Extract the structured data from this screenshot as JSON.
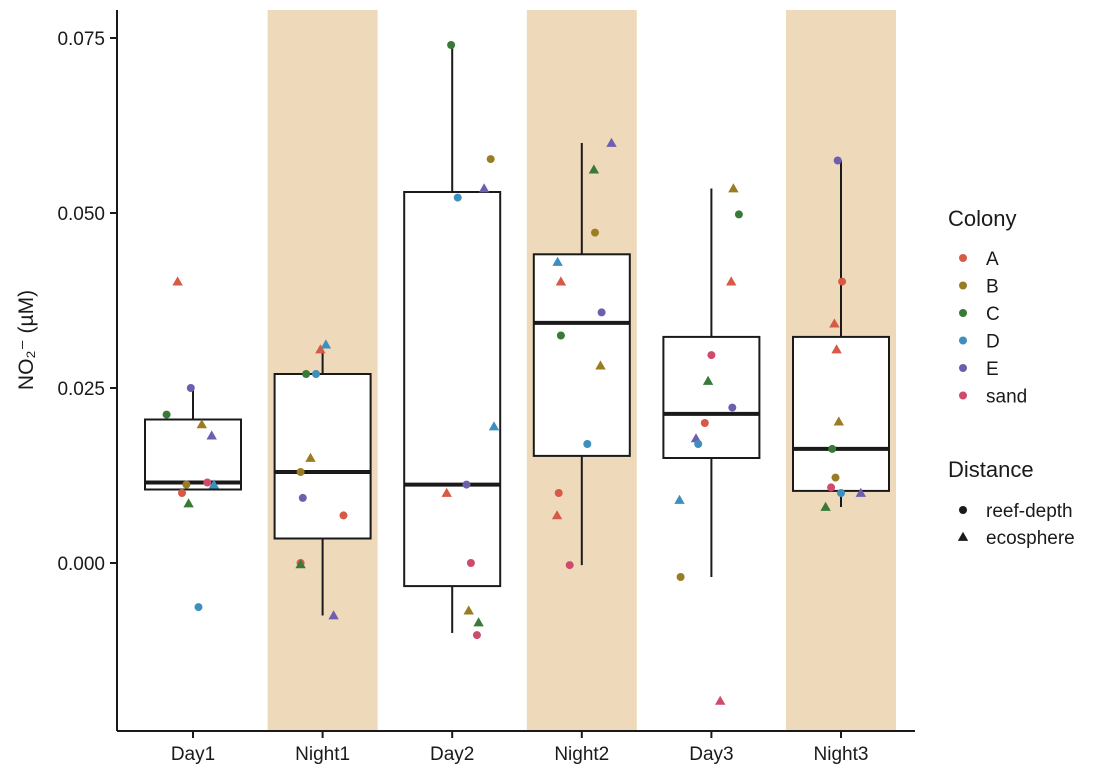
{
  "chart_data": {
    "type": "box",
    "ylabel": "NO₂⁻ (µM)",
    "ylim": [
      -0.024,
      0.079
    ],
    "yticks": [
      0.0,
      0.025,
      0.05,
      0.075
    ],
    "ytick_labels": [
      "0.000",
      "0.025",
      "0.050",
      "0.075"
    ],
    "categories": [
      "Day1",
      "Night1",
      "Day2",
      "Night2",
      "Day3",
      "Night3"
    ],
    "shaded_categories": [
      "Night1",
      "Night2",
      "Night3"
    ],
    "shade_color": "#efd9bb",
    "grid": false,
    "legend_position": "right",
    "boxes": [
      {
        "category": "Day1",
        "whisker_low": 0.0105,
        "q1": 0.0105,
        "median": 0.0115,
        "q3": 0.0205,
        "whisker_high": 0.025
      },
      {
        "category": "Night1",
        "whisker_low": -0.0075,
        "q1": 0.0035,
        "median": 0.013,
        "q3": 0.027,
        "whisker_high": 0.0305
      },
      {
        "category": "Day2",
        "whisker_low": -0.01,
        "q1": -0.0033,
        "median": 0.0112,
        "q3": 0.053,
        "whisker_high": 0.074
      },
      {
        "category": "Night2",
        "whisker_low": -0.0003,
        "q1": 0.0153,
        "median": 0.0343,
        "q3": 0.0441,
        "whisker_high": 0.06
      },
      {
        "category": "Day3",
        "whisker_low": -0.002,
        "q1": 0.015,
        "median": 0.0213,
        "q3": 0.0323,
        "whisker_high": 0.0535
      },
      {
        "category": "Night3",
        "whisker_low": 0.008,
        "q1": 0.0103,
        "median": 0.0163,
        "q3": 0.0323,
        "whisker_high": 0.0575
      }
    ],
    "points": [
      {
        "category": "Day1",
        "jitter": -0.48,
        "y": 0.0212,
        "colony": "C",
        "distance": "reef-depth"
      },
      {
        "category": "Day1",
        "jitter": -0.28,
        "y": 0.0402,
        "colony": "A",
        "distance": "ecosphere"
      },
      {
        "category": "Day1",
        "jitter": -0.2,
        "y": 0.01,
        "colony": "A",
        "distance": "reef-depth"
      },
      {
        "category": "Day1",
        "jitter": -0.12,
        "y": 0.0112,
        "colony": "B",
        "distance": "reef-depth"
      },
      {
        "category": "Day1",
        "jitter": -0.08,
        "y": 0.0085,
        "colony": "C",
        "distance": "ecosphere"
      },
      {
        "category": "Day1",
        "jitter": -0.04,
        "y": 0.025,
        "colony": "E",
        "distance": "reef-depth"
      },
      {
        "category": "Day1",
        "jitter": 0.1,
        "y": -0.0063,
        "colony": "D",
        "distance": "reef-depth"
      },
      {
        "category": "Day1",
        "jitter": 0.16,
        "y": 0.0198,
        "colony": "B",
        "distance": "ecosphere"
      },
      {
        "category": "Day1",
        "jitter": 0.26,
        "y": 0.0115,
        "colony": "sand",
        "distance": "reef-depth"
      },
      {
        "category": "Day1",
        "jitter": 0.34,
        "y": 0.0182,
        "colony": "E",
        "distance": "ecosphere"
      },
      {
        "category": "Day1",
        "jitter": 0.38,
        "y": 0.0112,
        "colony": "D",
        "distance": "ecosphere"
      },
      {
        "category": "Night1",
        "jitter": -0.4,
        "y": 0.0,
        "colony": "A",
        "distance": "reef-depth"
      },
      {
        "category": "Night1",
        "jitter": -0.4,
        "y": -0.0002,
        "colony": "C",
        "distance": "ecosphere"
      },
      {
        "category": "Night1",
        "jitter": -0.4,
        "y": 0.013,
        "colony": "B",
        "distance": "reef-depth"
      },
      {
        "category": "Night1",
        "jitter": -0.36,
        "y": 0.0093,
        "colony": "E",
        "distance": "reef-depth"
      },
      {
        "category": "Night1",
        "jitter": -0.3,
        "y": 0.027,
        "colony": "C",
        "distance": "reef-depth"
      },
      {
        "category": "Night1",
        "jitter": -0.22,
        "y": 0.015,
        "colony": "B",
        "distance": "ecosphere"
      },
      {
        "category": "Night1",
        "jitter": -0.12,
        "y": 0.027,
        "colony": "D",
        "distance": "reef-depth"
      },
      {
        "category": "Night1",
        "jitter": -0.04,
        "y": 0.0305,
        "colony": "A",
        "distance": "ecosphere"
      },
      {
        "category": "Night1",
        "jitter": 0.06,
        "y": 0.0312,
        "colony": "D",
        "distance": "ecosphere"
      },
      {
        "category": "Night1",
        "jitter": 0.2,
        "y": -0.0075,
        "colony": "E",
        "distance": "ecosphere"
      },
      {
        "category": "Night1",
        "jitter": 0.38,
        "y": 0.0068,
        "colony": "A",
        "distance": "reef-depth"
      },
      {
        "category": "Day2",
        "jitter": -0.02,
        "y": 0.074,
        "colony": "C",
        "distance": "reef-depth"
      },
      {
        "category": "Day2",
        "jitter": -0.1,
        "y": 0.01,
        "colony": "A",
        "distance": "ecosphere"
      },
      {
        "category": "Day2",
        "jitter": 0.1,
        "y": 0.0522,
        "colony": "D",
        "distance": "reef-depth"
      },
      {
        "category": "Day2",
        "jitter": 0.26,
        "y": 0.0112,
        "colony": "E",
        "distance": "reef-depth"
      },
      {
        "category": "Day2",
        "jitter": 0.3,
        "y": -0.0068,
        "colony": "B",
        "distance": "ecosphere"
      },
      {
        "category": "Day2",
        "jitter": 0.34,
        "y": 0.0,
        "colony": "sand",
        "distance": "reef-depth"
      },
      {
        "category": "Day2",
        "jitter": 0.45,
        "y": -0.0103,
        "colony": "sand",
        "distance": "reef-depth"
      },
      {
        "category": "Day2",
        "jitter": 0.48,
        "y": -0.0085,
        "colony": "C",
        "distance": "ecosphere"
      },
      {
        "category": "Day2",
        "jitter": 0.58,
        "y": 0.0535,
        "colony": "E",
        "distance": "ecosphere"
      },
      {
        "category": "Day2",
        "jitter": 0.7,
        "y": 0.0577,
        "colony": "B",
        "distance": "reef-depth"
      },
      {
        "category": "Day2",
        "jitter": 0.76,
        "y": 0.0195,
        "colony": "D",
        "distance": "ecosphere"
      },
      {
        "category": "Night2",
        "jitter": -0.45,
        "y": 0.0068,
        "colony": "A",
        "distance": "ecosphere"
      },
      {
        "category": "Night2",
        "jitter": -0.42,
        "y": 0.01,
        "colony": "A",
        "distance": "reef-depth"
      },
      {
        "category": "Night2",
        "jitter": -0.44,
        "y": 0.043,
        "colony": "D",
        "distance": "ecosphere"
      },
      {
        "category": "Night2",
        "jitter": -0.38,
        "y": 0.0402,
        "colony": "A",
        "distance": "ecosphere"
      },
      {
        "category": "Night2",
        "jitter": -0.38,
        "y": 0.0325,
        "colony": "C",
        "distance": "reef-depth"
      },
      {
        "category": "Night2",
        "jitter": -0.22,
        "y": -0.0003,
        "colony": "sand",
        "distance": "reef-depth"
      },
      {
        "category": "Night2",
        "jitter": 0.1,
        "y": 0.017,
        "colony": "D",
        "distance": "reef-depth"
      },
      {
        "category": "Night2",
        "jitter": 0.22,
        "y": 0.0562,
        "colony": "C",
        "distance": "ecosphere"
      },
      {
        "category": "Night2",
        "jitter": 0.24,
        "y": 0.0472,
        "colony": "B",
        "distance": "reef-depth"
      },
      {
        "category": "Night2",
        "jitter": 0.34,
        "y": 0.0282,
        "colony": "B",
        "distance": "ecosphere"
      },
      {
        "category": "Night2",
        "jitter": 0.36,
        "y": 0.0358,
        "colony": "E",
        "distance": "reef-depth"
      },
      {
        "category": "Night2",
        "jitter": 0.54,
        "y": 0.06,
        "colony": "E",
        "distance": "ecosphere"
      },
      {
        "category": "Day3",
        "jitter": -0.58,
        "y": 0.009,
        "colony": "D",
        "distance": "ecosphere"
      },
      {
        "category": "Day3",
        "jitter": -0.56,
        "y": -0.002,
        "colony": "B",
        "distance": "reef-depth"
      },
      {
        "category": "Day3",
        "jitter": -0.28,
        "y": 0.0178,
        "colony": "E",
        "distance": "ecosphere"
      },
      {
        "category": "Day3",
        "jitter": -0.24,
        "y": 0.017,
        "colony": "D",
        "distance": "reef-depth"
      },
      {
        "category": "Day3",
        "jitter": -0.12,
        "y": 0.02,
        "colony": "A",
        "distance": "reef-depth"
      },
      {
        "category": "Day3",
        "jitter": -0.06,
        "y": 0.026,
        "colony": "C",
        "distance": "ecosphere"
      },
      {
        "category": "Day3",
        "jitter": 0.0,
        "y": 0.0297,
        "colony": "sand",
        "distance": "reef-depth"
      },
      {
        "category": "Day3",
        "jitter": 0.16,
        "y": -0.0197,
        "colony": "sand",
        "distance": "ecosphere"
      },
      {
        "category": "Day3",
        "jitter": 0.38,
        "y": 0.0222,
        "colony": "E",
        "distance": "reef-depth"
      },
      {
        "category": "Day3",
        "jitter": 0.36,
        "y": 0.0402,
        "colony": "A",
        "distance": "ecosphere"
      },
      {
        "category": "Day3",
        "jitter": 0.4,
        "y": 0.0535,
        "colony": "B",
        "distance": "ecosphere"
      },
      {
        "category": "Day3",
        "jitter": 0.5,
        "y": 0.0498,
        "colony": "C",
        "distance": "reef-depth"
      },
      {
        "category": "Night3",
        "jitter": -0.28,
        "y": 0.008,
        "colony": "C",
        "distance": "ecosphere"
      },
      {
        "category": "Night3",
        "jitter": -0.18,
        "y": 0.0108,
        "colony": "sand",
        "distance": "reef-depth"
      },
      {
        "category": "Night3",
        "jitter": -0.16,
        "y": 0.0163,
        "colony": "C",
        "distance": "reef-depth"
      },
      {
        "category": "Night3",
        "jitter": -0.12,
        "y": 0.0342,
        "colony": "A",
        "distance": "ecosphere"
      },
      {
        "category": "Night3",
        "jitter": -0.1,
        "y": 0.0122,
        "colony": "B",
        "distance": "reef-depth"
      },
      {
        "category": "Night3",
        "jitter": -0.08,
        "y": 0.0305,
        "colony": "A",
        "distance": "ecosphere"
      },
      {
        "category": "Night3",
        "jitter": -0.06,
        "y": 0.0575,
        "colony": "E",
        "distance": "reef-depth"
      },
      {
        "category": "Night3",
        "jitter": -0.04,
        "y": 0.0202,
        "colony": "B",
        "distance": "ecosphere"
      },
      {
        "category": "Night3",
        "jitter": 0.0,
        "y": 0.01,
        "colony": "D",
        "distance": "reef-depth"
      },
      {
        "category": "Night3",
        "jitter": 0.02,
        "y": 0.0402,
        "colony": "A",
        "distance": "reef-depth"
      },
      {
        "category": "Night3",
        "jitter": 0.36,
        "y": 0.01,
        "colony": "E",
        "distance": "ecosphere"
      }
    ],
    "legend": {
      "colony_title": "Colony",
      "colony": [
        {
          "label": "A",
          "color": "#d65a45"
        },
        {
          "label": "B",
          "color": "#9a7d22"
        },
        {
          "label": "C",
          "color": "#3a7a38"
        },
        {
          "label": "D",
          "color": "#3d8fbd"
        },
        {
          "label": "E",
          "color": "#6e5fae"
        },
        {
          "label": "sand",
          "color": "#cf4b6b"
        }
      ],
      "distance_title": "Distance",
      "distance": [
        {
          "label": "reef-depth",
          "shape": "circle"
        },
        {
          "label": "ecosphere",
          "shape": "triangle"
        }
      ]
    }
  }
}
